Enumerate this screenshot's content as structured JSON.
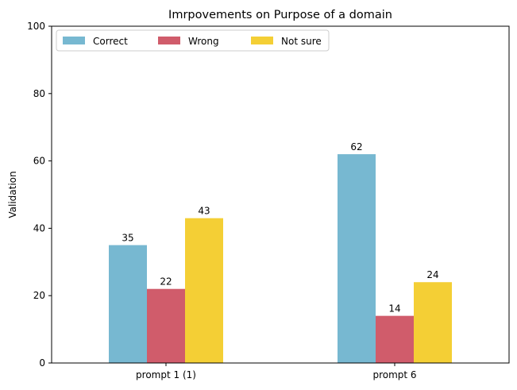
{
  "chart_data": {
    "type": "bar",
    "title": "Imrpovements on Purpose of a domain",
    "xlabel": "",
    "ylabel": "Validation",
    "categories": [
      "prompt 1 (1)",
      "prompt 6"
    ],
    "series": [
      {
        "name": "Correct",
        "values": [
          35,
          62
        ],
        "color": "#77b8d1"
      },
      {
        "name": "Wrong",
        "values": [
          22,
          14
        ],
        "color": "#d05c6b"
      },
      {
        "name": "Not sure",
        "values": [
          43,
          24
        ],
        "color": "#f4cf35"
      }
    ],
    "ylim": [
      0,
      100
    ],
    "yticks": [
      0,
      20,
      40,
      60,
      80,
      100
    ],
    "grid": false,
    "legend_position": "top-left",
    "legend_columns": 3
  }
}
